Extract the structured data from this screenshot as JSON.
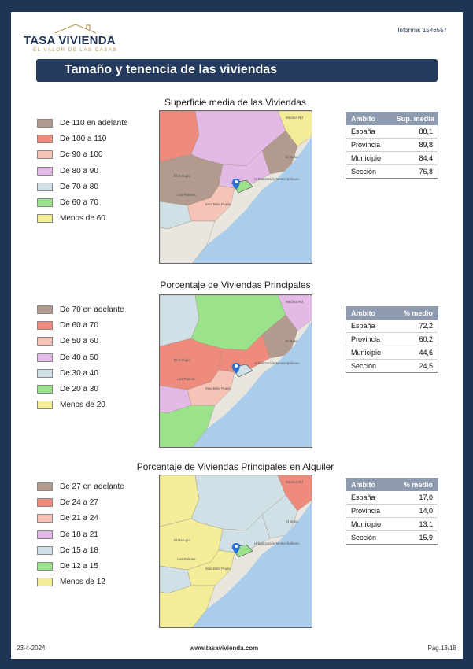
{
  "header": {
    "logo_name": "TASA VIVIENDA",
    "logo_tagline": "EL VALOR DE LAS CASAS",
    "report_id": "Informe: 1546557"
  },
  "section_title": "Tamaño y tenencia de las viviendas",
  "blocks": [
    {
      "title": "Superficie media de las Viviendas",
      "legend": [
        {
          "label": "De 110 en adelante",
          "color": "#b29b8e"
        },
        {
          "label": "De 100 a 110",
          "color": "#ee8b7d"
        },
        {
          "label": "De 90 a 100",
          "color": "#f7c3b6"
        },
        {
          "label": "De 80 a 90",
          "color": "#e3b9e6"
        },
        {
          "label": "De 70 a 80",
          "color": "#cfe0e6"
        },
        {
          "label": "De 60 a 70",
          "color": "#9be38b"
        },
        {
          "label": "Menos de 60",
          "color": "#f3ed9a"
        }
      ],
      "table": {
        "headers": [
          "Ambito",
          "Sup. media"
        ],
        "rows": [
          {
            "name": "España",
            "value": "88,1"
          },
          {
            "name": "Provincia",
            "value": "89,8"
          },
          {
            "name": "Municipio",
            "value": "84,4"
          },
          {
            "name": "Sección",
            "value": "76,8"
          }
        ]
      }
    },
    {
      "title": "Porcentaje de Viviendas Principales",
      "legend": [
        {
          "label": "De 70 en adelante",
          "color": "#b29b8e"
        },
        {
          "label": "De 60 a 70",
          "color": "#ee8b7d"
        },
        {
          "label": "De 50 a 60",
          "color": "#f7c3b6"
        },
        {
          "label": "De 40 a 50",
          "color": "#e3b9e6"
        },
        {
          "label": "De 30 a 40",
          "color": "#cfe0e6"
        },
        {
          "label": "De 20 a 30",
          "color": "#9be38b"
        },
        {
          "label": "Menos de 20",
          "color": "#f3ed9a"
        }
      ],
      "table": {
        "headers": [
          "Ambito",
          "% medio"
        ],
        "rows": [
          {
            "name": "España",
            "value": "72,2"
          },
          {
            "name": "Provincia",
            "value": "60,2"
          },
          {
            "name": "Municipio",
            "value": "44,6"
          },
          {
            "name": "Sección",
            "value": "24,5"
          }
        ]
      }
    },
    {
      "title": "Porcentaje de Viviendas Principales en Alquiler",
      "legend": [
        {
          "label": "De 27 en adelante",
          "color": "#b29b8e"
        },
        {
          "label": "De 24 a 27",
          "color": "#ee8b7d"
        },
        {
          "label": "De 21 a 24",
          "color": "#f7c3b6"
        },
        {
          "label": "De 18 a 21",
          "color": "#e3b9e6"
        },
        {
          "label": "De 15 a 18",
          "color": "#cfe0e6"
        },
        {
          "label": "De 12 a 15",
          "color": "#9be38b"
        },
        {
          "label": "Menos de 12",
          "color": "#f3ed9a"
        }
      ],
      "table": {
        "headers": [
          "Ambito",
          "% medio"
        ],
        "rows": [
          {
            "name": "España",
            "value": "17,0"
          },
          {
            "name": "Provincia",
            "value": "14,0"
          },
          {
            "name": "Municipio",
            "value": "13,1"
          },
          {
            "name": "Sección",
            "value": "15,9"
          }
        ]
      }
    }
  ],
  "map_labels": {
    "a": "Urbanización Monte Bahiano",
    "b": "El Refugio",
    "c": "Las Palmas",
    "d": "El Baku",
    "e": "Mas Bela Prado",
    "f": "Medina Rd"
  },
  "footer": {
    "date": "23-4-2024",
    "website": "www.tasavivienda.com",
    "page": "Pág.13/18"
  }
}
